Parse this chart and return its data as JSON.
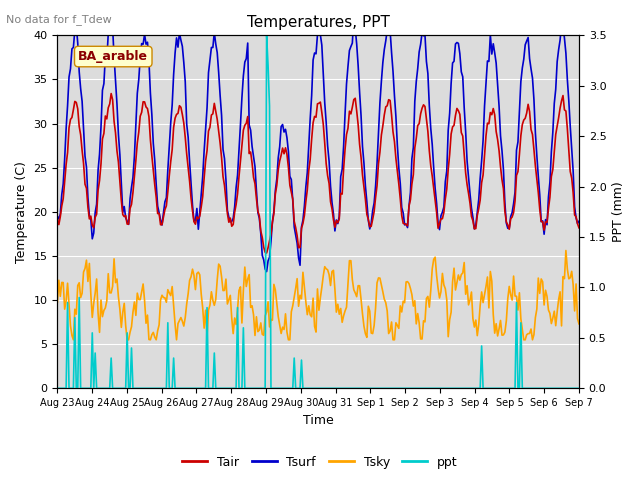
{
  "title": "Temperatures, PPT",
  "subtitle": "No data for f_Tdew",
  "annotation": "BA_arable",
  "xlabel": "Time",
  "ylabel_left": "Temperature (C)",
  "ylabel_right": "PPT (mm)",
  "ylim_left": [
    0,
    40
  ],
  "ylim_right": [
    0,
    3.5
  ],
  "yticks_left": [
    0,
    5,
    10,
    15,
    20,
    25,
    30,
    35,
    40
  ],
  "yticks_right": [
    0.0,
    0.5,
    1.0,
    1.5,
    2.0,
    2.5,
    3.0,
    3.5
  ],
  "n_points": 360,
  "n_days": 15,
  "bg_color": "#dcdcdc",
  "line_colors": {
    "Tair": "#cc0000",
    "Tsurf": "#0000cc",
    "Tsky": "#ffa500",
    "ppt": "#00cccc"
  },
  "line_widths": {
    "Tair": 1.2,
    "Tsurf": 1.2,
    "Tsky": 1.2,
    "ppt": 1.2
  },
  "xtick_labels": [
    "Aug 23",
    "Aug 24",
    "Aug 25",
    "Aug 26",
    "Aug 27",
    "Aug 28",
    "Aug 29",
    "Aug 30",
    "Aug 31",
    "Sep 1",
    "Sep 2",
    "Sep 3",
    "Sep 4",
    "Sep 5",
    "Sep 6",
    "Sep 7"
  ],
  "figsize": [
    6.4,
    4.8
  ],
  "dpi": 100,
  "title_fontsize": 11,
  "subtitle_fontsize": 8,
  "axis_label_fontsize": 9,
  "tick_fontsize": 8,
  "legend_fontsize": 9,
  "annotation_color": "#8b0000",
  "annotation_fontsize": 9,
  "annotation_facecolor": "#ffffcc",
  "annotation_edgecolor": "#cc8800"
}
